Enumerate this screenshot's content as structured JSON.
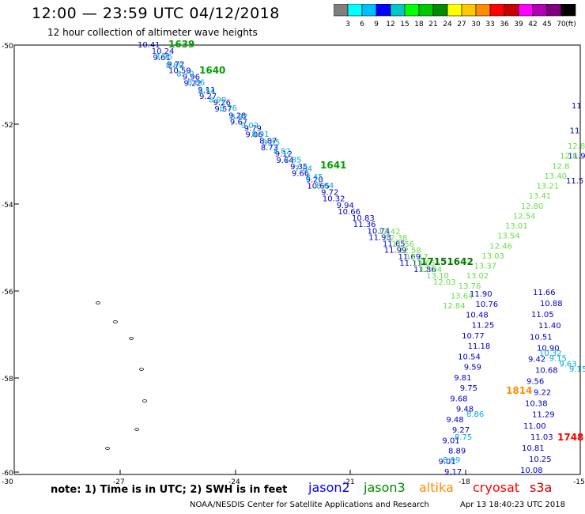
{
  "title": "12:00 — 23:59 UTC 04/12/2018",
  "subtitle": "12 hour collection of altimeter wave heights",
  "colorbar": {
    "colors": [
      "#7f7f7f",
      "#00ffff",
      "#00bfff",
      "#0000ff",
      "#00c8c8",
      "#00ff00",
      "#00c800",
      "#008c00",
      "#ffff00",
      "#ffc800",
      "#ff8c00",
      "#ff0000",
      "#c80000",
      "#ff00ff",
      "#b400b4",
      "#7f007f",
      "#000000"
    ],
    "labels": [
      "3",
      "6",
      "9",
      "12",
      "15",
      "18",
      "21",
      "24",
      "27",
      "30",
      "33",
      "36",
      "39",
      "42",
      "45",
      "70",
      "(ft)"
    ]
  },
  "axes": {
    "y_labels": [
      "-50",
      "-52",
      "-54",
      "-56",
      "-58",
      "-60"
    ],
    "x_labels": [
      "-27",
      "-24",
      "-21",
      "-18",
      "-15"
    ],
    "corner_label": "-30"
  },
  "satellites": {
    "jason2": {
      "name": "jason2",
      "color": "#0000ff"
    },
    "jason3": {
      "name": "jason3",
      "color": "#008c00"
    },
    "altika": {
      "name": "altika",
      "color": "#ff8c00"
    },
    "cryosat": {
      "name": "cryosat",
      "color": "#ff0000"
    },
    "s3a": {
      "name": "s3a",
      "color": "#c80000"
    }
  },
  "pass_labels": [
    {
      "text": "1639",
      "color": "#00a000"
    },
    {
      "text": "1640",
      "color": "#00a000"
    },
    {
      "text": "1641",
      "color": "#00a000"
    },
    {
      "text": "17151642",
      "color": "#007a00"
    },
    {
      "text": "1814",
      "color": "#ff8c00"
    },
    {
      "text": "1748",
      "color": "#ff0000"
    }
  ],
  "tracks": {
    "track_a": [
      "10.41",
      "10.24",
      "9.61",
      "9.72",
      "10.59",
      "9.96",
      "9.22",
      "9.11",
      "9.27",
      "9.26",
      "9.57",
      "9.28",
      "9.67",
      "9.79",
      "9.06",
      "8.87",
      "8.73",
      "9.12",
      "9.64",
      "9.35",
      "9.66",
      "9.20",
      "10.65",
      "9.72",
      "10.32",
      "9.94",
      "10.66",
      "10.83",
      "11.36",
      "10.74",
      "11.93",
      "11.65",
      "11.99",
      "11.69",
      "11.11",
      "11.86"
    ],
    "track_a_light": [
      "8.95",
      "8.89",
      "8.70",
      "8.86",
      "8.54",
      "8.90",
      "8.76",
      "8.97",
      "9.02",
      "8.91",
      "8.85",
      "8.82",
      "7.85",
      "7.64",
      "8.45",
      "8.64"
    ],
    "track_b": [
      "11.90",
      "10.76",
      "10.48",
      "11.25",
      "10.77",
      "11.18",
      "10.54",
      "9.59",
      "9.81",
      "9.75",
      "9.68",
      "9.48",
      "9.48",
      "9.27",
      "9.01",
      "8.89",
      "9.01",
      "9.17"
    ],
    "track_b_light": [
      "8.86",
      "8.75",
      "8.99"
    ],
    "track_c": [
      "11.66",
      "10.88",
      "11.05",
      "11.40",
      "10.51",
      "10.90",
      "9.42",
      "10.68",
      "9.56",
      "9.22",
      "10.38",
      "11.29",
      "11.00",
      "11.03",
      "10.81",
      "10.25",
      "10.08"
    ],
    "track_c_light": [
      "10.32",
      "9.15",
      "9.63",
      "9.15"
    ],
    "track_d_blue": [
      "11",
      "11",
      "11.9",
      "11.5"
    ],
    "track_d_green": [
      "12.8",
      "12.8",
      "12.8",
      "13.40",
      "13.21",
      "13.41",
      "12.80",
      "12.54",
      "13.01",
      "13.54",
      "12.46",
      "13.03",
      "13.37",
      "13.02",
      "13.76",
      "13.64",
      "12.84"
    ],
    "track_e_green": [
      "12.42",
      "12.38",
      "11.56",
      "12.58",
      "13.17",
      "13.65",
      "12.84",
      "13.10",
      "12.03"
    ]
  },
  "footer": {
    "note": "note: 1) Time is in UTC; 2) SWH is in feet",
    "credit": "NOAA/NESDIS Center for Satellite Applications and Research",
    "date": "Apr 13 18:40:23 UTC 2018"
  }
}
